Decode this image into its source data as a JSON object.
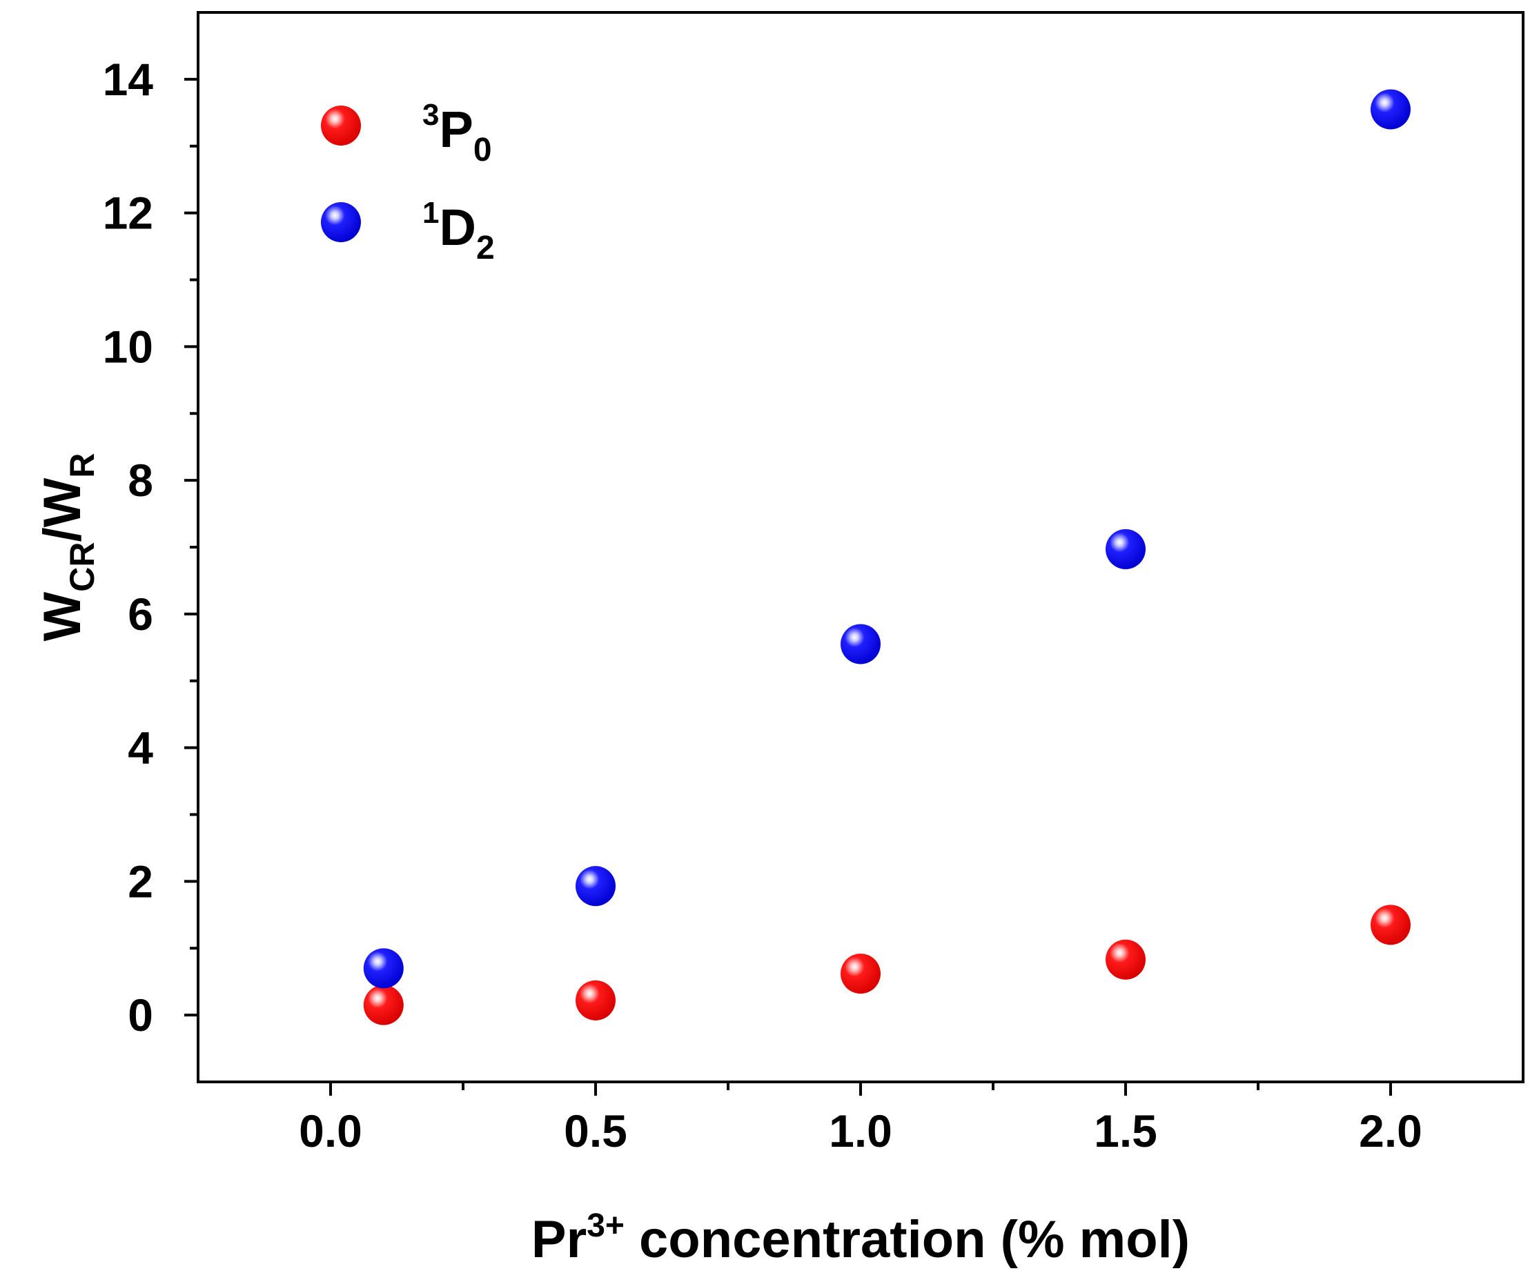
{
  "chart_data": {
    "type": "scatter",
    "title": "",
    "xlabel": {
      "main": "Pr",
      "sup": "3+",
      "rest": " concentration (% mol)"
    },
    "ylabel": {
      "w1": "W",
      "sub1": "CR",
      "slash": "/W",
      "sub2": "R"
    },
    "xlim": [
      -0.25,
      2.25
    ],
    "ylim": [
      -1,
      15
    ],
    "x_ticks": [
      "0.0",
      "0.5",
      "1.0",
      "1.5",
      "2.0"
    ],
    "y_ticks": [
      "0",
      "2",
      "4",
      "6",
      "8",
      "10",
      "12",
      "14"
    ],
    "series": [
      {
        "name": "3P0",
        "label_sup": "3",
        "label_main": "P",
        "label_sub": "0",
        "color": "#ee0000",
        "highlight": "#ffd0d0",
        "x": [
          0.1,
          0.5,
          1.0,
          1.5,
          2.0
        ],
        "y": [
          0.15,
          0.22,
          0.62,
          0.83,
          1.35
        ]
      },
      {
        "name": "1D2",
        "label_sup": "1",
        "label_main": "D",
        "label_sub": "2",
        "color": "#1010ee",
        "highlight": "#d8d8ff",
        "x": [
          0.1,
          0.5,
          1.0,
          1.5,
          2.0
        ],
        "y": [
          0.7,
          1.93,
          5.55,
          6.97,
          13.55
        ]
      }
    ],
    "legend_position": "top-left",
    "grid": false
  }
}
